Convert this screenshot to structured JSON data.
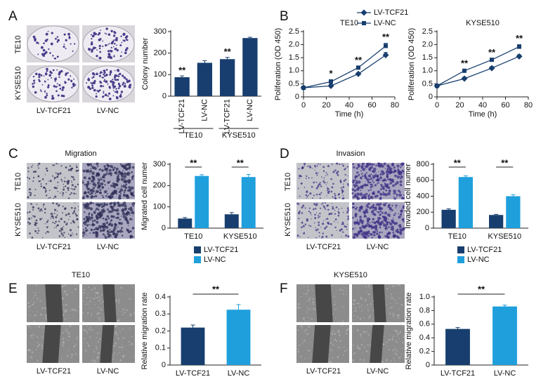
{
  "chart_data": [
    {
      "type": "bar",
      "panel": "A",
      "image_labels": {
        "rows": [
          "TE10",
          "KYSE510"
        ],
        "columns": [
          "LV-TCF21",
          "LV-NC"
        ]
      },
      "y_label": "Colony number",
      "categories": [
        "LV-TCF21",
        "LV-NC",
        "LV-TCF21",
        "LV-NC"
      ],
      "groups": [
        "TE10",
        "KYSE510"
      ],
      "values": [
        88,
        155,
        172,
        270
      ],
      "errors": [
        6,
        10,
        8,
        4
      ],
      "significance": [
        "**",
        null,
        "**",
        null
      ],
      "color": "#173e6e",
      "ylim": [
        0,
        300
      ],
      "yticks": [
        0,
        100,
        200,
        300
      ]
    },
    {
      "type": "line",
      "panel": "B",
      "title": "TE10",
      "x_label": "Time (h)",
      "y_label": "Poliferation (OD 450)",
      "x": [
        0,
        24,
        48,
        72
      ],
      "xlim": [
        0,
        80
      ],
      "xticks": [
        0,
        20,
        40,
        60,
        80
      ],
      "ylim": [
        0,
        2.5
      ],
      "yticks": [
        0,
        0.5,
        {
          "value": 1,
          "label": "1.0"
        },
        1.5,
        {
          "value": 2,
          "label": "2.0"
        },
        2.5
      ],
      "series": [
        {
          "name": "LV-TCF21",
          "color": "#173e6e",
          "marker": "diamond",
          "values": [
            0.35,
            0.42,
            0.88,
            1.6
          ],
          "errors": [
            0.02,
            0.05,
            0.03,
            0.1
          ]
        },
        {
          "name": "LV-NC",
          "color": "#173e6e",
          "marker": "square",
          "values": [
            0.35,
            0.58,
            1.12,
            1.95
          ],
          "errors": [
            0.02,
            0.08,
            0.05,
            0.1
          ]
        }
      ],
      "significance": [
        null,
        "*",
        "**",
        "**"
      ]
    },
    {
      "type": "line",
      "title": "KYSE510",
      "x_label": "Time (h)",
      "y_label": "Poliferation (OD 450)",
      "x": [
        0,
        24,
        48,
        72
      ],
      "xlim": [
        0,
        80
      ],
      "xticks": [
        0,
        20,
        40,
        60,
        80
      ],
      "ylim": [
        0,
        2.5
      ],
      "yticks": [
        0,
        0.5,
        {
          "value": 1,
          "label": "1.0"
        },
        1.5,
        {
          "value": 2,
          "label": "2.0"
        },
        2.5
      ],
      "series": [
        {
          "color": "#173e6e",
          "marker": "diamond",
          "values": [
            0.42,
            0.7,
            1.1,
            1.55
          ],
          "errors": [
            0.02,
            0.05,
            0.06,
            0.06
          ]
        },
        {
          "color": "#173e6e",
          "marker": "square",
          "values": [
            0.42,
            1.0,
            1.42,
            1.92
          ],
          "errors": [
            0.02,
            0.04,
            0.04,
            0.08
          ]
        }
      ],
      "significance": [
        null,
        "**",
        "**",
        "**"
      ]
    },
    {
      "type": "grouped_bar",
      "panel": "C",
      "title": "Migration",
      "image_labels": {
        "rows": [
          "TE10",
          "KYSE510"
        ],
        "columns": [
          "LV-TCF21",
          "LV-NC"
        ]
      },
      "y_label": "Migrated cell numer",
      "categories": [
        "TE10",
        "KYSE510"
      ],
      "series": [
        {
          "name": "LV-TCF21",
          "color": "#173e6e",
          "values": [
            45,
            65
          ],
          "errors": [
            5,
            8
          ]
        },
        {
          "name": "LV-NC",
          "color": "#1f9fdc",
          "values": [
            245,
            240
          ],
          "errors": [
            6,
            12
          ]
        }
      ],
      "significance": [
        "**",
        "**"
      ],
      "ylim": [
        0,
        300
      ],
      "yticks": [
        0,
        100,
        200,
        300
      ]
    },
    {
      "type": "grouped_bar",
      "panel": "D",
      "title": "Invasion",
      "image_labels": {
        "rows": [
          "TE10",
          "KYSE510"
        ],
        "columns": [
          "LV-TCF21",
          "LV-NC"
        ]
      },
      "y_label": "Invaded cell numer",
      "categories": [
        "TE10",
        "KYSE510"
      ],
      "series": [
        {
          "name": "LV-TCF21",
          "color": "#173e6e",
          "values": [
            230,
            165
          ],
          "errors": [
            12,
            8
          ]
        },
        {
          "name": "LV-NC",
          "color": "#1f9fdc",
          "values": [
            640,
            400
          ],
          "errors": [
            15,
            20
          ]
        }
      ],
      "significance": [
        "**",
        "**"
      ],
      "ylim": [
        0,
        800
      ],
      "yticks": [
        0,
        200,
        400,
        600,
        800
      ]
    },
    {
      "type": "pair_bar",
      "panel": "E",
      "title": "TE10",
      "image_labels": {
        "columns": [
          "LV-TCF21",
          "LV-NC"
        ]
      },
      "y_label": "Relative migration rate",
      "categories": [
        "LV-TCF21",
        "LV-NC"
      ],
      "values": [
        0.22,
        0.325
      ],
      "errors": [
        0.015,
        0.03
      ],
      "colors": [
        "#173e6e",
        "#1f9fdc"
      ],
      "significance": "**",
      "ylim": [
        0,
        0.4
      ],
      "yticks": [
        0,
        0.1,
        0.2,
        0.3,
        0.4
      ]
    },
    {
      "type": "pair_bar",
      "panel": "F",
      "title": "KYSE510",
      "image_labels": {
        "columns": [
          "LV-TCF21",
          "LV-NC"
        ]
      },
      "y_label": "Relative migration rate",
      "categories": [
        "LV-TCF21",
        "LV-NC"
      ],
      "values": [
        0.53,
        0.86
      ],
      "errors": [
        0.02,
        0.02
      ],
      "colors": [
        "#173e6e",
        "#1f9fdc"
      ],
      "significance": "**",
      "ylim": [
        0,
        1
      ],
      "yticks": [
        0,
        0.2,
        0.4,
        0.6,
        0.8,
        {
          "value": 1,
          "label": "1.0"
        }
      ]
    }
  ]
}
